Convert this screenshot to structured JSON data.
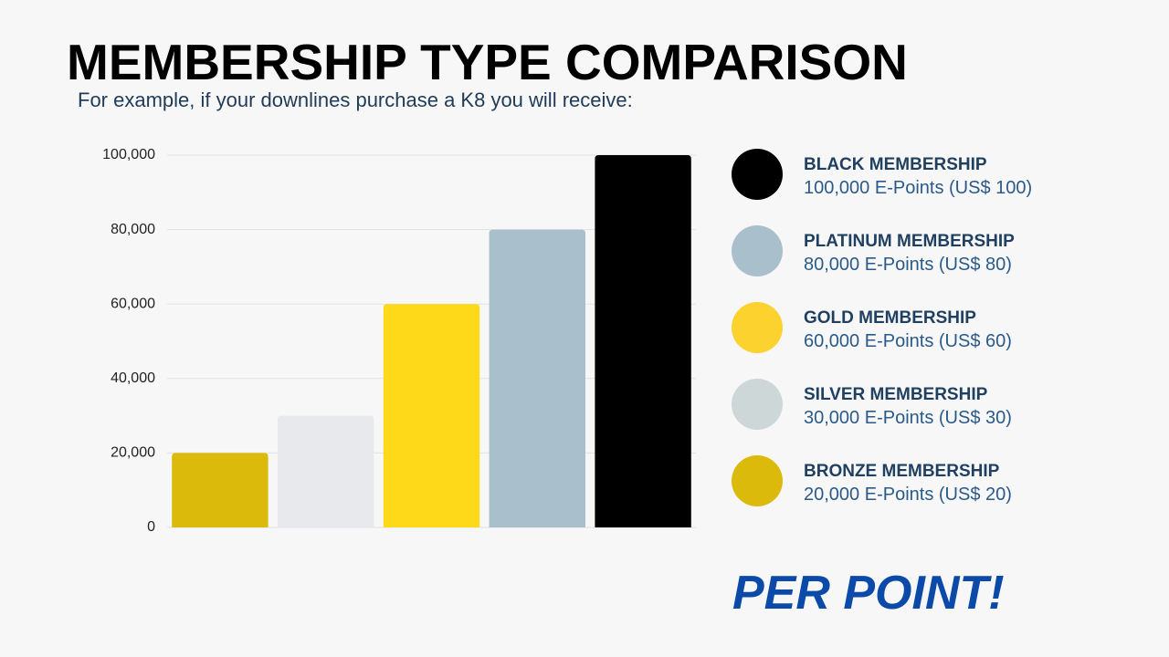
{
  "chart_data": {
    "type": "bar",
    "title": "MEMBERSHIP TYPE COMPARISON",
    "subtitle": "For example, if your downlines purchase a K8 you will receive:",
    "categories": [
      null,
      null,
      null,
      null,
      null
    ],
    "values": [
      20000,
      30000,
      60000,
      80000,
      100000
    ],
    "colors": [
      "#dbba0c",
      "#e8e9ec",
      "#fed91a",
      "#a9bfcc",
      "#000000"
    ],
    "ylim": [
      0,
      100000
    ],
    "yticks": [
      0,
      {
        "value": 20000,
        "label": "20,000"
      },
      {
        "value": 40000,
        "label": "40,000"
      },
      {
        "value": 60000,
        "label": "60,000"
      },
      {
        "value": 80000,
        "label": "80,000"
      },
      {
        "value": 100000,
        "label": "100,000"
      }
    ],
    "grid": true
  },
  "legend": [
    {
      "name": "BLACK MEMBERSHIP",
      "detail": "100,000 E-Points (US$ 100)",
      "color": "#000000"
    },
    {
      "name": "PLATINUM MEMBERSHIP",
      "detail": "80,000 E-Points (US$ 80)",
      "color": "#a9bfcc"
    },
    {
      "name": "GOLD MEMBERSHIP",
      "detail": "60,000 E-Points (US$ 60)",
      "color": "#fbd22e"
    },
    {
      "name": "SILVER MEMBERSHIP",
      "detail": "30,000 E-Points (US$ 30)",
      "color": "#ced7d8"
    },
    {
      "name": "BRONZE MEMBERSHIP",
      "detail": "20,000 E-Points (US$ 20)",
      "color": "#dbba0c"
    }
  ],
  "callout": "PER POINT!"
}
